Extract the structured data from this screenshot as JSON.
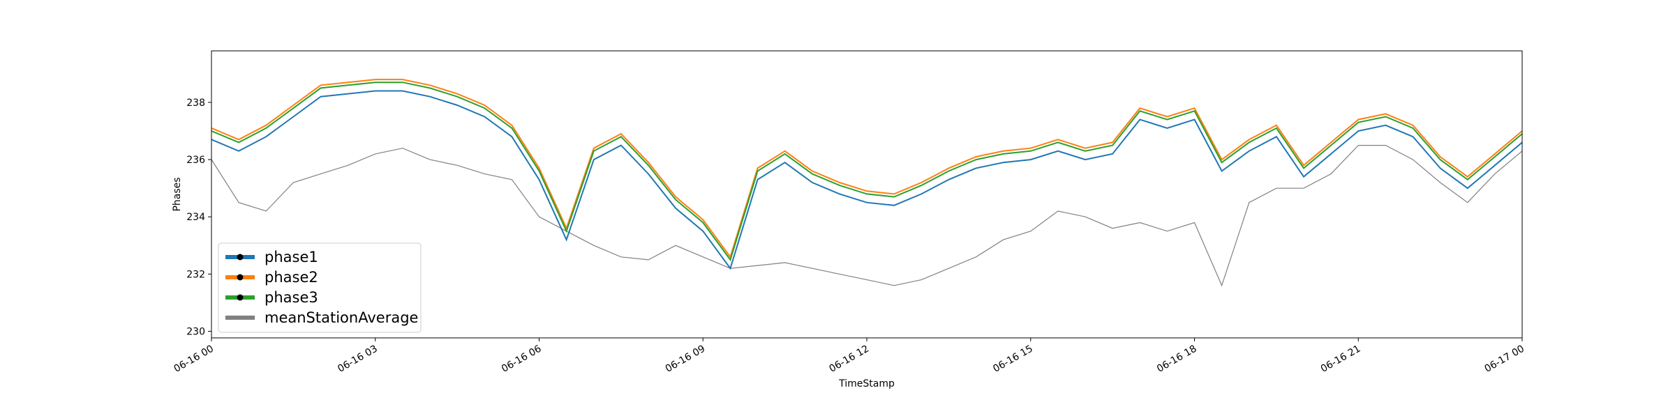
{
  "chart_data": {
    "type": "line",
    "xlabel": "TimeStamp",
    "ylabel": "Phases",
    "x": [
      0,
      0.5,
      1,
      1.5,
      2,
      2.5,
      3,
      3.5,
      4,
      4.5,
      5,
      5.5,
      6,
      6.5,
      7,
      7.5,
      8,
      8.5,
      9,
      9.5,
      10,
      10.5,
      11,
      11.5,
      12,
      12.5,
      13,
      13.5,
      14,
      14.5,
      15,
      15.5,
      16,
      16.5,
      17,
      17.5,
      18,
      18.5,
      19,
      19.5,
      20,
      20.5,
      21,
      21.5,
      22,
      22.5,
      23,
      23.5,
      24
    ],
    "series": [
      {
        "name": "phase1",
        "color": "#1f77b4",
        "values": [
          236.7,
          236.3,
          236.8,
          237.5,
          238.2,
          238.3,
          238.4,
          238.4,
          238.2,
          237.9,
          237.5,
          236.8,
          235.3,
          233.2,
          236.0,
          236.5,
          235.5,
          234.3,
          233.5,
          232.2,
          235.3,
          235.9,
          235.2,
          234.8,
          234.5,
          234.4,
          234.8,
          235.3,
          235.7,
          235.9,
          236.0,
          236.3,
          236.0,
          236.2,
          237.4,
          237.1,
          237.4,
          235.6,
          236.3,
          236.8,
          235.4,
          236.2,
          237.0,
          237.2,
          236.8,
          235.7,
          235.0,
          235.8,
          236.6
        ]
      },
      {
        "name": "phase2",
        "color": "#ff7f0e",
        "values": [
          237.1,
          236.7,
          237.2,
          237.9,
          238.6,
          238.7,
          238.8,
          238.8,
          238.6,
          238.3,
          237.9,
          237.2,
          235.7,
          233.6,
          236.4,
          236.9,
          235.9,
          234.7,
          233.9,
          232.6,
          235.7,
          236.3,
          235.6,
          235.2,
          234.9,
          234.8,
          235.2,
          235.7,
          236.1,
          236.3,
          236.4,
          236.7,
          236.4,
          236.6,
          237.8,
          237.5,
          237.8,
          236.0,
          236.7,
          237.2,
          235.8,
          236.6,
          237.4,
          237.6,
          237.2,
          236.1,
          235.4,
          236.2,
          237.0
        ]
      },
      {
        "name": "phase3",
        "color": "#2ca02c",
        "values": [
          237.0,
          236.6,
          237.1,
          237.8,
          238.5,
          238.6,
          238.7,
          238.7,
          238.5,
          238.2,
          237.8,
          237.1,
          235.6,
          233.5,
          236.3,
          236.8,
          235.8,
          234.6,
          233.8,
          232.5,
          235.6,
          236.2,
          235.5,
          235.1,
          234.8,
          234.7,
          235.1,
          235.6,
          236.0,
          236.2,
          236.3,
          236.6,
          236.3,
          236.5,
          237.7,
          237.4,
          237.7,
          235.9,
          236.6,
          237.1,
          235.7,
          236.5,
          237.3,
          237.5,
          237.1,
          236.0,
          235.3,
          236.1,
          236.9
        ]
      },
      {
        "name": "meanStationAverage",
        "color": "#808080",
        "values": [
          236.0,
          234.5,
          234.2,
          235.2,
          235.5,
          235.8,
          236.2,
          236.4,
          236.0,
          235.8,
          235.5,
          235.3,
          234.0,
          233.5,
          233.0,
          232.6,
          232.5,
          233.0,
          232.6,
          232.2,
          232.3,
          232.4,
          232.2,
          232.0,
          231.8,
          231.6,
          231.8,
          232.2,
          232.6,
          233.2,
          233.5,
          234.2,
          234.0,
          233.6,
          233.8,
          233.5,
          233.8,
          231.6,
          234.5,
          235.0,
          235.0,
          235.5,
          236.5,
          236.5,
          236.0,
          235.2,
          234.5,
          235.5,
          236.3
        ]
      }
    ],
    "xlim": [
      0,
      24
    ],
    "xticks": [
      {
        "value": 0,
        "label": "06-16 00"
      },
      {
        "value": 3,
        "label": "06-16 03"
      },
      {
        "value": 6,
        "label": "06-16 06"
      },
      {
        "value": 9,
        "label": "06-16 09"
      },
      {
        "value": 12,
        "label": "06-16 12"
      },
      {
        "value": 15,
        "label": "06-16 15"
      },
      {
        "value": 18,
        "label": "06-16 18"
      },
      {
        "value": 21,
        "label": "06-16 21"
      },
      {
        "value": 24,
        "label": "06-17 00"
      }
    ],
    "ylim": [
      229.77,
      239.8
    ],
    "yticks": [
      230,
      232,
      234,
      236,
      238
    ],
    "legend": "lower left"
  }
}
